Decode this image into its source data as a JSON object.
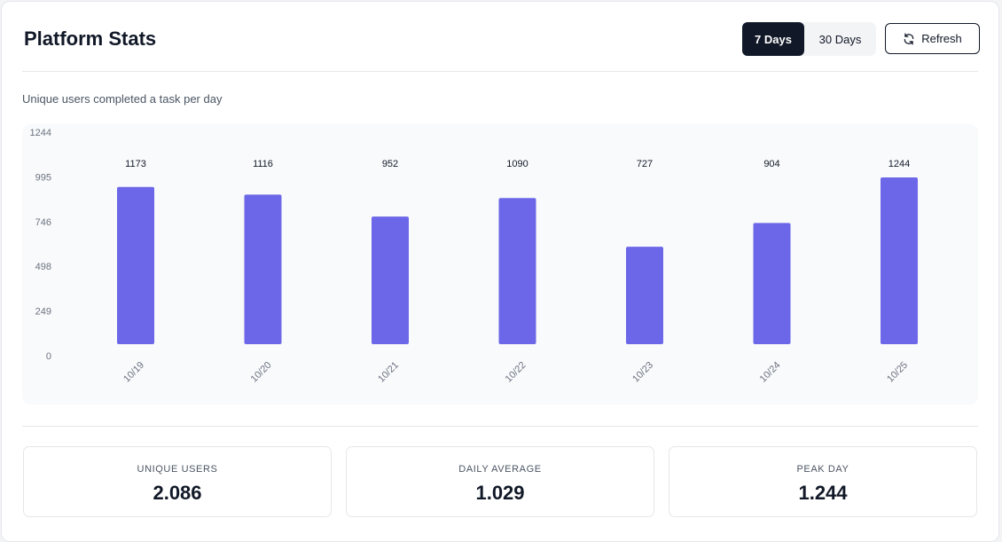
{
  "header": {
    "title": "Platform Stats",
    "range_options": [
      {
        "label": "7 Days",
        "active": true
      },
      {
        "label": "30 Days",
        "active": false
      }
    ],
    "refresh_label": "Refresh",
    "refresh_icon": "refresh-icon"
  },
  "chart_data": {
    "type": "bar",
    "title": "Unique users completed a task per day",
    "categories": [
      "10/19",
      "10/20",
      "10/21",
      "10/22",
      "10/23",
      "10/24",
      "10/25"
    ],
    "values": [
      1173,
      1116,
      952,
      1090,
      727,
      904,
      1244
    ],
    "y_ticks": [
      0,
      249,
      498,
      746,
      995,
      1244
    ],
    "ylim": [
      0,
      1244
    ],
    "bar_color": "#6c67e8",
    "grid": false
  },
  "stats": [
    {
      "label": "UNIQUE USERS",
      "value": "2.086"
    },
    {
      "label": "DAILY AVERAGE",
      "value": "1.029"
    },
    {
      "label": "PEAK DAY",
      "value": "1.244"
    }
  ]
}
